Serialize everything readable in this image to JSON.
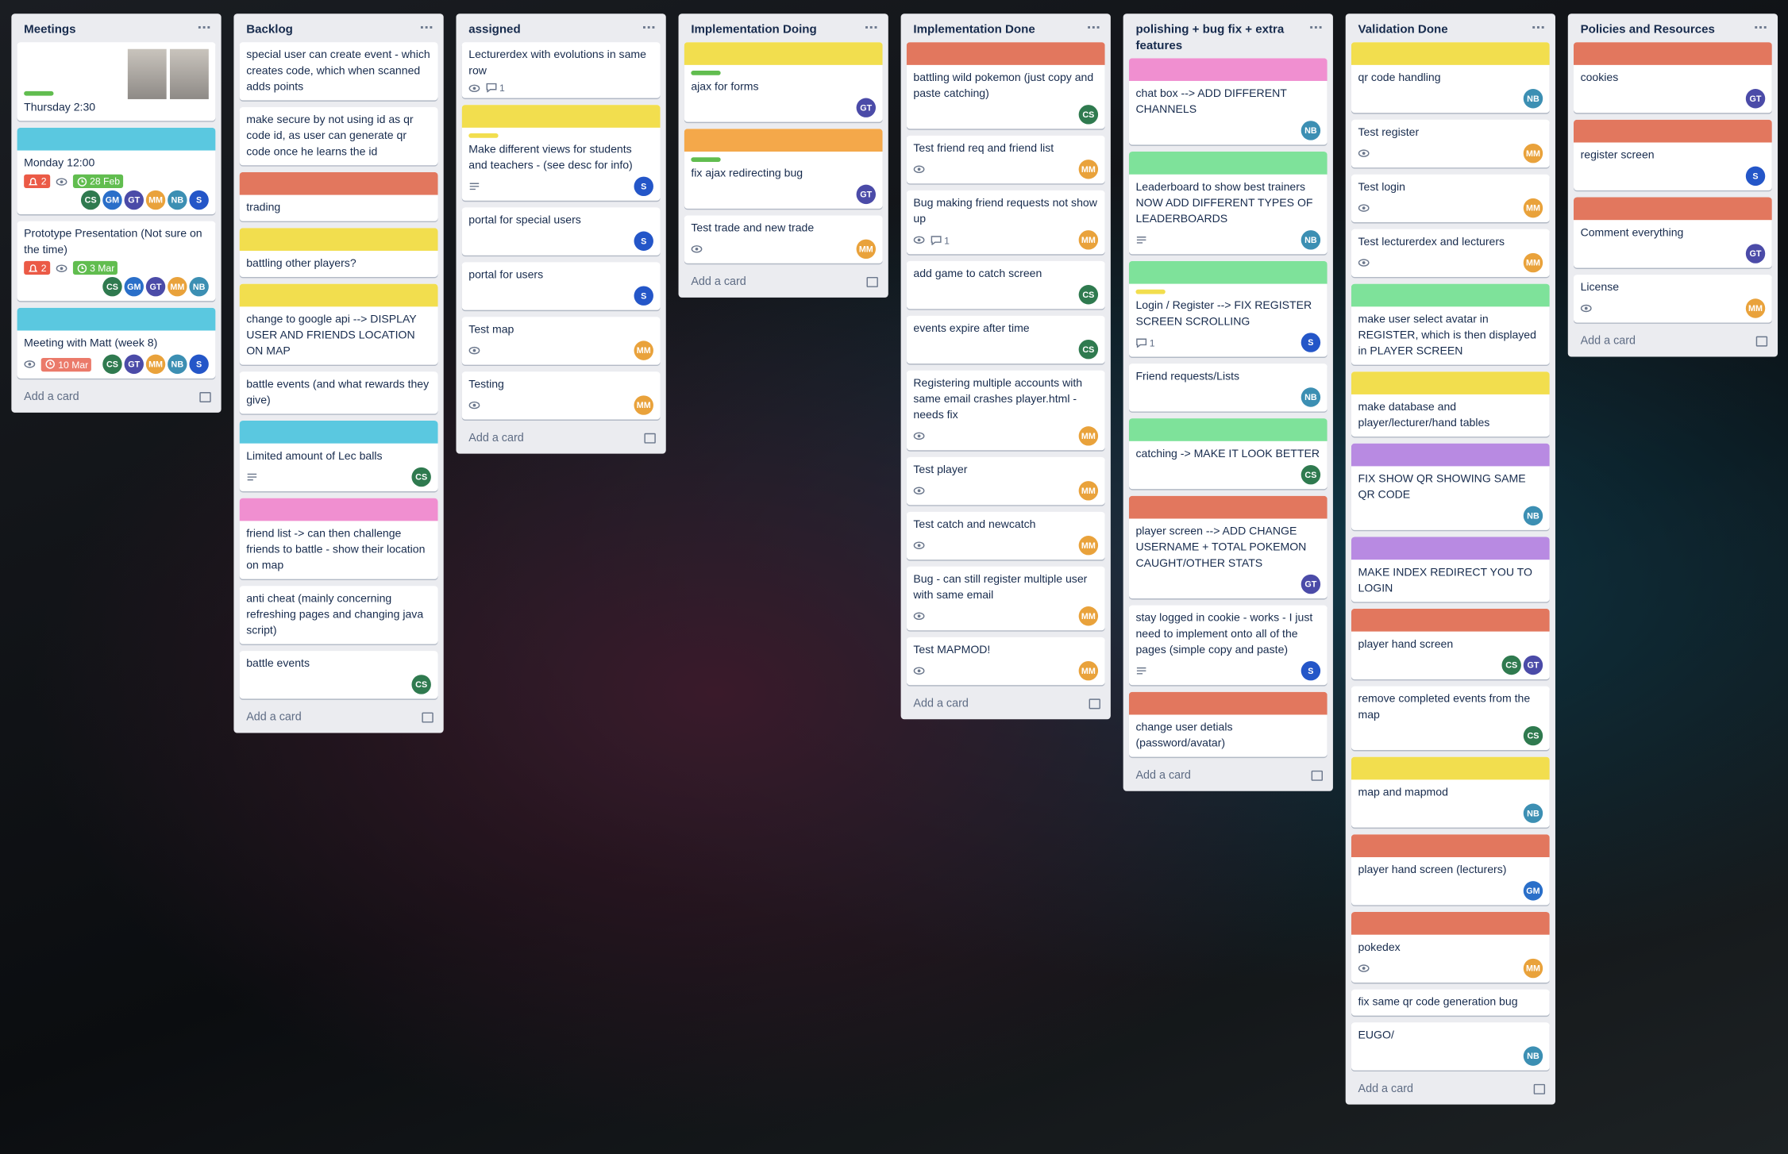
{
  "add_card": "Add a card",
  "member_colors": {
    "CS": "#2f7a4f",
    "GM": "#2a6fc9",
    "GT": "#4b4ba8",
    "MM": "#e9a23b",
    "NB": "#3c8fb3",
    "S": "#2456c8"
  },
  "lists": [
    {
      "title": "Meetings",
      "cards": [
        {
          "label": "#61bd4f",
          "text": "Thursday 2:30",
          "photo": true
        },
        {
          "cover": "#5ac8e0",
          "text": "Monday 12:00",
          "badges": [
            {
              "kind": "alerts",
              "count": 2
            },
            {
              "kind": "watch"
            },
            {
              "kind": "due",
              "text": "28 Feb",
              "color": "#61bd4f"
            }
          ],
          "members": [
            "CS",
            "GM",
            "GT",
            "MM",
            "NB",
            "S"
          ]
        },
        {
          "text": "Prototype Presentation (Not sure on the time)",
          "badges": [
            {
              "kind": "alerts",
              "count": 2
            },
            {
              "kind": "watch"
            },
            {
              "kind": "due",
              "text": "3 Mar",
              "color": "#61bd4f"
            }
          ],
          "members": [
            "CS",
            "GM",
            "GT",
            "MM",
            "NB"
          ]
        },
        {
          "cover": "#5ac8e0",
          "text": "Meeting with Matt (week 8)",
          "badges": [
            {
              "kind": "watch"
            },
            {
              "kind": "due",
              "text": "10 Mar",
              "color": "#eb7a6a"
            }
          ],
          "members": [
            "CS",
            "GT",
            "MM",
            "NB",
            "S"
          ]
        }
      ]
    },
    {
      "title": "Backlog",
      "cards": [
        {
          "text": "special user can create event - which creates code, which when scanned adds points"
        },
        {
          "text": "make secure by not using id as qr code id, as user can generate qr code once he learns the id"
        },
        {
          "cover": "#e2775e",
          "text": "trading"
        },
        {
          "cover": "#f2de4e",
          "text": "battling other players?"
        },
        {
          "cover": "#f2de4e",
          "text": "change to google api --> DISPLAY USER AND FRIENDS LOCATION ON MAP"
        },
        {
          "text": "battle events (and what rewards they give)"
        },
        {
          "cover": "#5ac8e0",
          "text": "Limited amount of Lec balls",
          "badges": [
            {
              "kind": "description"
            }
          ],
          "members": [
            "CS"
          ]
        },
        {
          "cover": "#f08fd0",
          "text": "friend list -> can then challenge friends to battle - show their location on map"
        },
        {
          "text": "anti cheat (mainly concerning refreshing pages and changing java script)"
        },
        {
          "text": "battle events",
          "members": [
            "CS"
          ]
        }
      ]
    },
    {
      "title": "assigned",
      "cards": [
        {
          "text": "Lecturerdex with evolutions in same row",
          "badges": [
            {
              "kind": "watch"
            },
            {
              "kind": "comments",
              "count": 1
            }
          ]
        },
        {
          "cover": "#f2de4e",
          "label": "#f2de4e",
          "text": "Make different views for students and teachers - (see desc for info)",
          "badges": [
            {
              "kind": "description"
            }
          ],
          "members": [
            "S"
          ]
        },
        {
          "text": "portal for special users",
          "members": [
            "S"
          ]
        },
        {
          "text": "portal for users",
          "members": [
            "S"
          ]
        },
        {
          "text": "Test map",
          "badges": [
            {
              "kind": "watch"
            }
          ],
          "members": [
            "MM"
          ]
        },
        {
          "text": "Testing",
          "badges": [
            {
              "kind": "watch"
            }
          ],
          "members": [
            "MM"
          ]
        }
      ]
    },
    {
      "title": "Implementation Doing",
      "cards": [
        {
          "cover": "#f2de4e",
          "label": "#61bd4f",
          "text": "ajax for forms",
          "members": [
            "GT"
          ]
        },
        {
          "cover": "#f4a84a",
          "label": "#61bd4f",
          "text": "fix ajax redirecting bug",
          "members": [
            "GT"
          ]
        },
        {
          "text": "Test trade and new trade",
          "badges": [
            {
              "kind": "watch"
            }
          ],
          "members": [
            "MM"
          ]
        }
      ]
    },
    {
      "title": "Implementation Done",
      "cards": [
        {
          "cover": "#e2775e",
          "text": "battling wild pokemon (just copy and paste catching)",
          "members": [
            "CS"
          ]
        },
        {
          "text": "Test friend req and friend list",
          "badges": [
            {
              "kind": "watch"
            }
          ],
          "members": [
            "MM"
          ]
        },
        {
          "text": "Bug making friend requests not show up",
          "badges": [
            {
              "kind": "watch"
            },
            {
              "kind": "comments",
              "count": 1
            }
          ],
          "members": [
            "MM"
          ]
        },
        {
          "text": "add game to catch screen",
          "members": [
            "CS"
          ]
        },
        {
          "text": "events expire after time",
          "members": [
            "CS"
          ]
        },
        {
          "text": "Registering multiple accounts with same email crashes player.html - needs fix",
          "badges": [
            {
              "kind": "watch"
            }
          ],
          "members": [
            "MM"
          ]
        },
        {
          "text": "Test player",
          "badges": [
            {
              "kind": "watch"
            }
          ],
          "members": [
            "MM"
          ]
        },
        {
          "text": "Test catch and newcatch",
          "badges": [
            {
              "kind": "watch"
            }
          ],
          "members": [
            "MM"
          ]
        },
        {
          "text": "Bug - can still register multiple user with same email",
          "badges": [
            {
              "kind": "watch"
            }
          ],
          "members": [
            "MM"
          ]
        },
        {
          "text": "Test MAPMOD!",
          "badges": [
            {
              "kind": "watch"
            }
          ],
          "members": [
            "MM"
          ]
        }
      ]
    },
    {
      "title": "polishing + bug fix + extra features",
      "cards": [
        {
          "cover": "#f08fd0",
          "text": "chat box --> ADD DIFFERENT CHANNELS",
          "members": [
            "NB"
          ]
        },
        {
          "cover": "#7ee29a",
          "text": "Leaderboard to show best trainers NOW ADD DIFFERENT TYPES OF LEADERBOARDS",
          "badges": [
            {
              "kind": "description"
            }
          ],
          "members": [
            "NB"
          ]
        },
        {
          "cover": "#7ee29a",
          "label": "#f2de4e",
          "text": "Login / Register --> FIX REGISTER SCREEN SCROLLING",
          "badges": [
            {
              "kind": "comments",
              "count": 1
            }
          ],
          "members": [
            "S"
          ]
        },
        {
          "text": "Friend requests/Lists",
          "members": [
            "NB"
          ]
        },
        {
          "cover": "#7ee29a",
          "text": "catching -> MAKE IT LOOK BETTER",
          "members": [
            "CS"
          ]
        },
        {
          "cover": "#e2775e",
          "text": "player screen --> ADD CHANGE USERNAME + TOTAL POKEMON CAUGHT/OTHER STATS",
          "members": [
            "GT"
          ]
        },
        {
          "text": "stay logged in cookie - works - I just need to implement onto all of the pages (simple copy and paste)",
          "badges": [
            {
              "kind": "description"
            }
          ],
          "members": [
            "S"
          ]
        },
        {
          "cover": "#e2775e",
          "text": "change user detials (password/avatar)"
        }
      ]
    },
    {
      "title": "Validation Done",
      "cards": [
        {
          "cover": "#f2de4e",
          "text": "qr code handling",
          "members": [
            "NB"
          ]
        },
        {
          "text": "Test register",
          "badges": [
            {
              "kind": "watch"
            }
          ],
          "members": [
            "MM"
          ]
        },
        {
          "text": "Test login",
          "badges": [
            {
              "kind": "watch"
            }
          ],
          "members": [
            "MM"
          ]
        },
        {
          "text": "Test lecturerdex and lecturers",
          "badges": [
            {
              "kind": "watch"
            }
          ],
          "members": [
            "MM"
          ]
        },
        {
          "cover": "#7ee29a",
          "text": "make user select avatar in REGISTER, which is then displayed in PLAYER SCREEN"
        },
        {
          "cover": "#f2de4e",
          "text": "make database and player/lecturer/hand tables"
        },
        {
          "cover": "#b88ae2",
          "text": "FIX SHOW QR SHOWING SAME QR CODE",
          "members": [
            "NB"
          ]
        },
        {
          "cover": "#b88ae2",
          "text": "MAKE INDEX REDIRECT YOU TO LOGIN"
        },
        {
          "cover": "#e2775e",
          "text": "player hand screen",
          "members": [
            "CS",
            "GT"
          ]
        },
        {
          "text": "remove completed events from the map",
          "members": [
            "CS"
          ]
        },
        {
          "cover": "#f2de4e",
          "text": "map and mapmod",
          "members": [
            "NB"
          ]
        },
        {
          "cover": "#e2775e",
          "text": "player hand screen (lecturers)",
          "members": [
            "GM"
          ]
        },
        {
          "cover": "#e2775e",
          "text": "pokedex",
          "badges": [
            {
              "kind": "watch"
            }
          ],
          "members": [
            "MM"
          ]
        },
        {
          "text": "fix same qr code generation bug"
        },
        {
          "text": "EUGO/",
          "members": [
            "NB"
          ]
        }
      ]
    },
    {
      "title": "Policies and Resources",
      "cards": [
        {
          "cover": "#e2775e",
          "text": "cookies",
          "members": [
            "GT"
          ]
        },
        {
          "cover": "#e2775e",
          "text": "register screen",
          "members": [
            "S"
          ]
        },
        {
          "cover": "#e2775e",
          "text": "Comment everything",
          "members": [
            "GT"
          ]
        },
        {
          "text": "License",
          "badges": [
            {
              "kind": "watch"
            }
          ],
          "members": [
            "MM"
          ]
        }
      ]
    }
  ]
}
